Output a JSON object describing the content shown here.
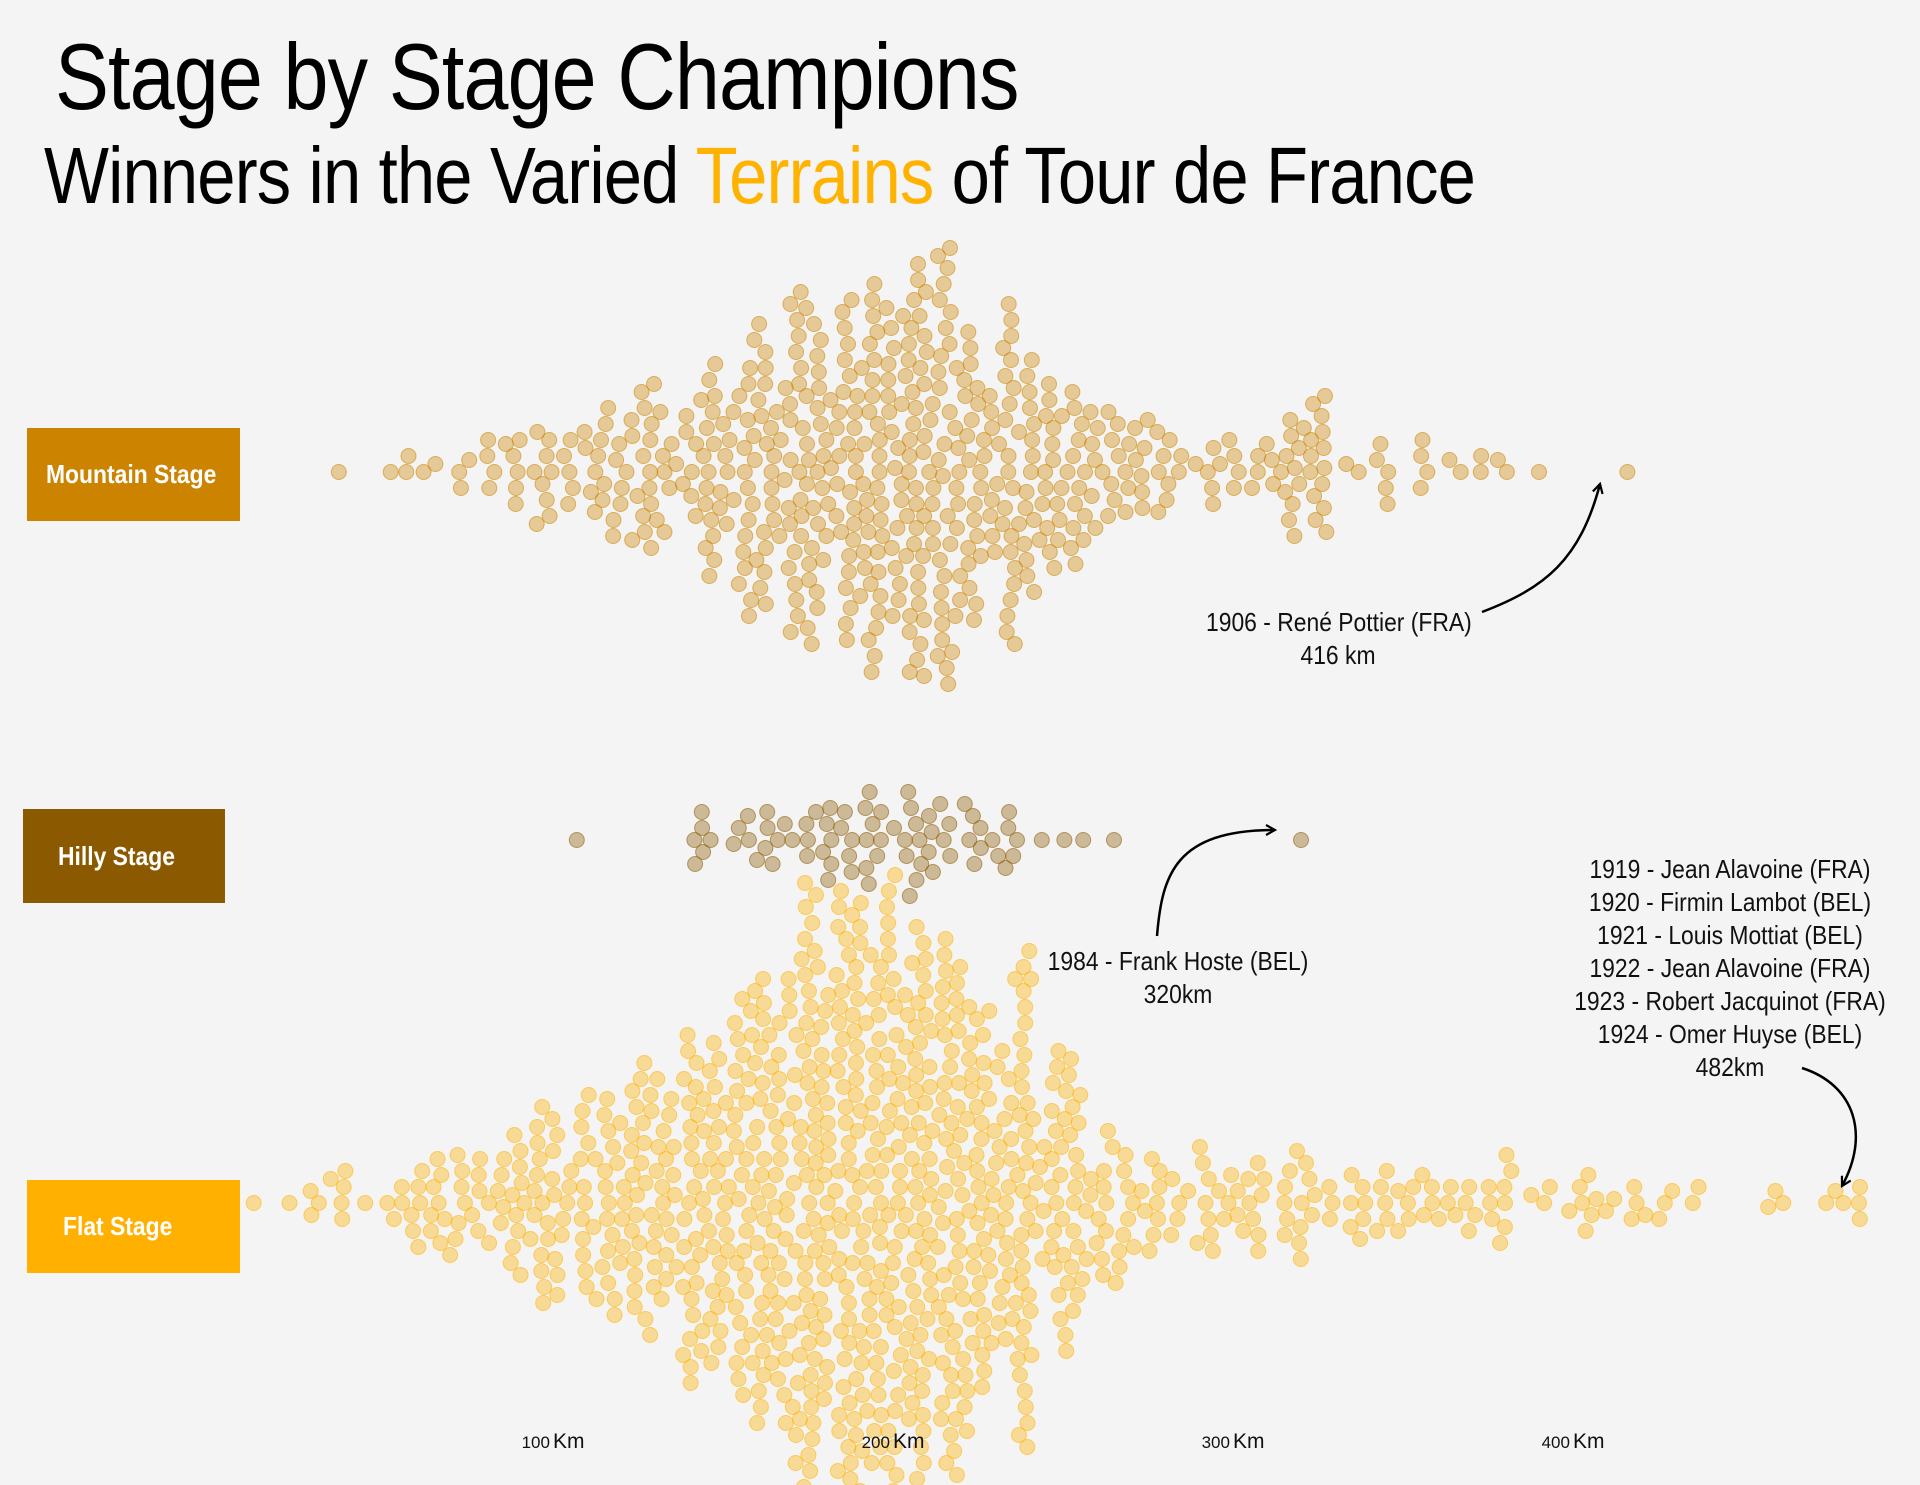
{
  "header": {
    "title": "Stage by Stage Champions",
    "subtitle_pre": "Winners in the Varied ",
    "subtitle_highlight": "Terrains",
    "subtitle_post": " of Tour de France"
  },
  "colors": {
    "mountain": "#cc8400",
    "hilly": "#8b5a00",
    "flat": "#ffb000",
    "highlight": "#ffb300",
    "background": "#f4f4f4"
  },
  "chart_data": {
    "type": "scatter",
    "subtype": "beeswarm",
    "xlabel": "",
    "ylabel": "",
    "xlim": [
      0,
      490
    ],
    "x_ticks": [
      {
        "value": 100,
        "num": "100",
        "unit": "Km"
      },
      {
        "value": 200,
        "num": "200",
        "unit": "Km"
      },
      {
        "value": 300,
        "num": "300",
        "unit": "Km"
      },
      {
        "value": 400,
        "num": "400",
        "unit": "Km"
      }
    ],
    "series": [
      {
        "name": "Mountain Stage",
        "color": "#cc8400",
        "distribution": [
          {
            "km": 37,
            "n": 1
          },
          {
            "km": 55,
            "n": 4
          },
          {
            "km": 70,
            "n": 4
          },
          {
            "km": 85,
            "n": 10
          },
          {
            "km": 100,
            "n": 14
          },
          {
            "km": 115,
            "n": 18
          },
          {
            "km": 130,
            "n": 24
          },
          {
            "km": 145,
            "n": 30
          },
          {
            "km": 160,
            "n": 42
          },
          {
            "km": 175,
            "n": 55
          },
          {
            "km": 190,
            "n": 64
          },
          {
            "km": 205,
            "n": 66
          },
          {
            "km": 220,
            "n": 60
          },
          {
            "km": 235,
            "n": 48
          },
          {
            "km": 250,
            "n": 32
          },
          {
            "km": 265,
            "n": 20
          },
          {
            "km": 280,
            "n": 14
          },
          {
            "km": 295,
            "n": 10
          },
          {
            "km": 310,
            "n": 8
          },
          {
            "km": 322,
            "n": 24
          },
          {
            "km": 340,
            "n": 7
          },
          {
            "km": 360,
            "n": 6
          },
          {
            "km": 375,
            "n": 4
          },
          {
            "km": 390,
            "n": 1
          },
          {
            "km": 416,
            "n": 1
          }
        ]
      },
      {
        "name": "Hilly Stage",
        "color": "#8b5a00",
        "distribution": [
          {
            "km": 107,
            "n": 1
          },
          {
            "km": 145,
            "n": 6
          },
          {
            "km": 160,
            "n": 10
          },
          {
            "km": 175,
            "n": 12
          },
          {
            "km": 190,
            "n": 14
          },
          {
            "km": 205,
            "n": 14
          },
          {
            "km": 220,
            "n": 10
          },
          {
            "km": 235,
            "n": 7
          },
          {
            "km": 250,
            "n": 3
          },
          {
            "km": 265,
            "n": 1
          },
          {
            "km": 320,
            "n": 1
          }
        ]
      },
      {
        "name": "Flat Stage",
        "color": "#ffb000",
        "distribution": [
          {
            "km": 10,
            "n": 2
          },
          {
            "km": 25,
            "n": 4
          },
          {
            "km": 40,
            "n": 6
          },
          {
            "km": 55,
            "n": 10
          },
          {
            "km": 70,
            "n": 16
          },
          {
            "km": 85,
            "n": 22
          },
          {
            "km": 100,
            "n": 28
          },
          {
            "km": 115,
            "n": 36
          },
          {
            "km": 130,
            "n": 46
          },
          {
            "km": 145,
            "n": 60
          },
          {
            "km": 160,
            "n": 78
          },
          {
            "km": 175,
            "n": 95
          },
          {
            "km": 190,
            "n": 108
          },
          {
            "km": 205,
            "n": 104
          },
          {
            "km": 220,
            "n": 90
          },
          {
            "km": 235,
            "n": 70
          },
          {
            "km": 250,
            "n": 44
          },
          {
            "km": 265,
            "n": 22
          },
          {
            "km": 280,
            "n": 14
          },
          {
            "km": 295,
            "n": 14
          },
          {
            "km": 310,
            "n": 14
          },
          {
            "km": 325,
            "n": 12
          },
          {
            "km": 340,
            "n": 12
          },
          {
            "km": 355,
            "n": 10
          },
          {
            "km": 370,
            "n": 10
          },
          {
            "km": 385,
            "n": 8
          },
          {
            "km": 400,
            "n": 8
          },
          {
            "km": 415,
            "n": 6
          },
          {
            "km": 430,
            "n": 5
          },
          {
            "km": 460,
            "n": 3
          },
          {
            "km": 475,
            "n": 3
          },
          {
            "km": 482,
            "n": 3
          }
        ]
      }
    ],
    "annotations": [
      {
        "lines": [
          "1906 - René Pottier (FRA)",
          "416 km"
        ],
        "series": "Mountain Stage",
        "x": 416
      },
      {
        "lines": [
          "1984 - Frank Hoste (BEL)",
          "320km"
        ],
        "series": "Hilly Stage",
        "x": 320
      },
      {
        "lines": [
          "1919 - Jean Alavoine (FRA)",
          "1920 - Firmin Lambot (BEL)",
          "1921 - Louis Mottiat (BEL)",
          "1922 - Jean Alavoine (FRA)",
          "1923 - Robert Jacquinot (FRA)",
          "1924 - Omer Huyse (BEL)",
          "482km"
        ],
        "series": "Flat Stage",
        "x": 482
      }
    ]
  }
}
